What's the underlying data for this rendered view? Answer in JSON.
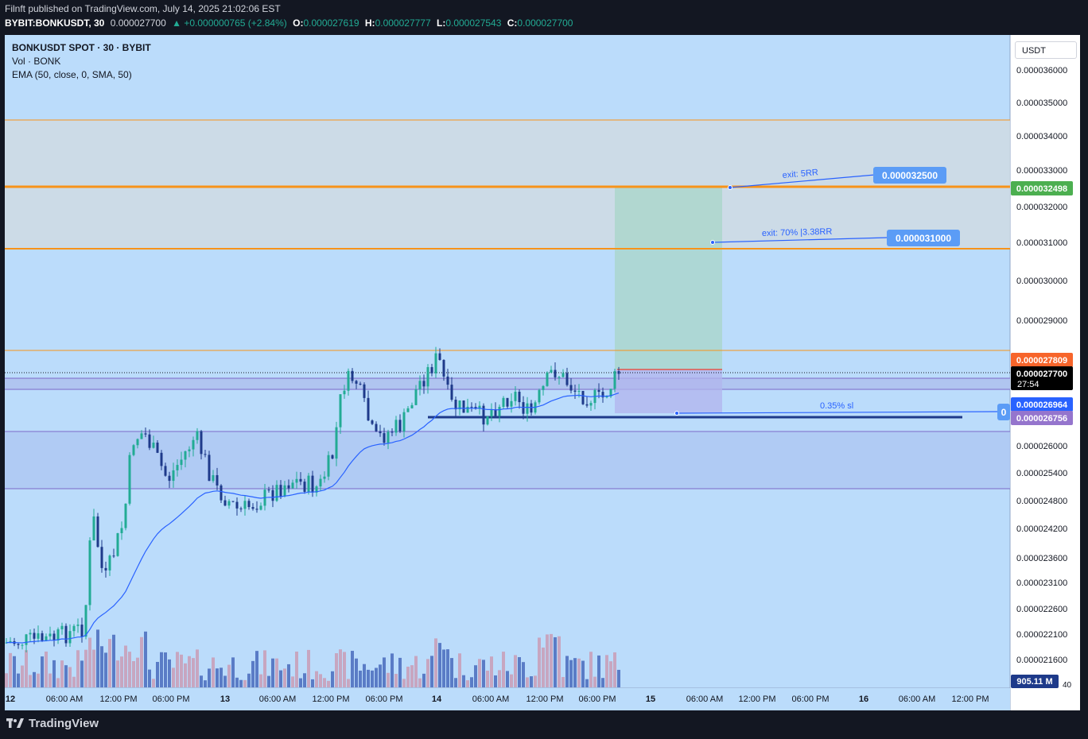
{
  "header": {
    "published": "Filnft published on TradingView.com, July 14, 2025 21:02:06 EST",
    "symbol": "BYBIT:BONKUSDT, 30",
    "last": "0.000027700",
    "change": "▲ +0.000000765 (+2.84%)",
    "o_label": "O:",
    "o_value": "0.000027619",
    "h_label": "H:",
    "h_value": "0.000027777",
    "l_label": "L:",
    "l_value": "0.000027543",
    "c_label": "C:",
    "c_value": "0.000027700"
  },
  "legend": {
    "title": "BONKUSDT SPOT · 30 · BYBIT",
    "vol": "Vol · BONK",
    "ema": "EMA (50, close, 0, SMA, 50)"
  },
  "currency": "USDT",
  "price_axis": {
    "ticks": [
      {
        "label": "0.000036000"
      },
      {
        "label": "0.000035000"
      },
      {
        "label": "0.000034000"
      },
      {
        "label": "0.000033000"
      },
      {
        "label": "0.000032000"
      },
      {
        "label": "0.000031000"
      },
      {
        "label": "0.000030000"
      },
      {
        "label": "0.000029000"
      },
      {
        "label": "0.000026000"
      },
      {
        "label": "0.000025400"
      },
      {
        "label": "0.000024800"
      },
      {
        "label": "0.000024200"
      },
      {
        "label": "0.000023600"
      },
      {
        "label": "0.000023100"
      },
      {
        "label": "0.000022600"
      },
      {
        "label": "0.000022100"
      },
      {
        "label": "0.000021600"
      }
    ],
    "badges": {
      "tp2": "0.000032498",
      "level_high": "0.000027809",
      "last": "0.000027700",
      "countdown": "27:54",
      "level_a": "0.000026964",
      "level_b": "0.000026756",
      "volume": "905.11 M",
      "vol_tick": "40"
    }
  },
  "time_axis": [
    "12",
    "06:00 AM",
    "12:00 PM",
    "06:00 PM",
    "13",
    "06:00 AM",
    "12:00 PM",
    "06:00 PM",
    "14",
    "06:00 AM",
    "12:00 PM",
    "06:00 PM",
    "15",
    "06:00 AM",
    "12:00 PM",
    "06:00 PM",
    "16",
    "06:00 AM",
    "12:00 PM"
  ],
  "annotations": {
    "tp2_label": "exit: 5RR",
    "tp2_price": "0.000032500",
    "tp1_label": "exit: 70% |3.38RR",
    "tp1_price": "0.000031000",
    "sl_label": "0.35% sl",
    "sl_price_stub": "0"
  },
  "colors": {
    "background": "#bbdcfb",
    "orange_level": "#f7931a",
    "bull": "#22ab94",
    "bear": "#1e3a8a",
    "ema": "#2962ff",
    "label_blue": "#5b9cf6",
    "tp_badge_green": "#4caf50",
    "badge_orange": "#f7652b",
    "badge_purple": "#9575cd"
  },
  "footer": {
    "brand": "TradingView"
  }
}
